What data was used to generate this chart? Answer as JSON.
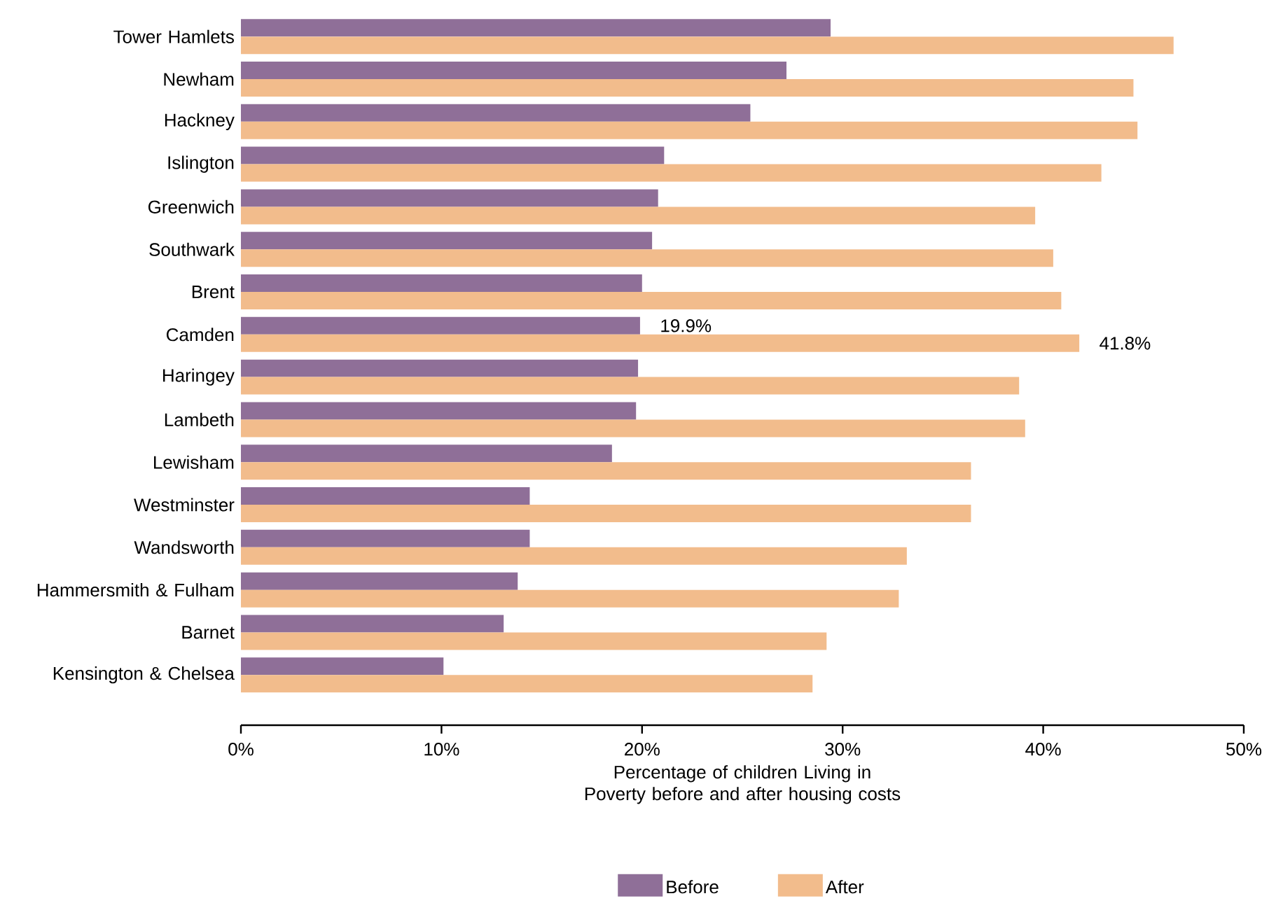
{
  "chart_data": {
    "type": "bar",
    "orientation": "horizontal",
    "xlabel": "Percentage of children Living in Poverty before and after housing costs",
    "categories": [
      "Tower Hamlets",
      "Newham",
      "Hackney",
      "Islington",
      "Greenwich",
      "Southwark",
      "Brent",
      "Camden",
      "Haringey",
      "Lambeth",
      "Lewisham",
      "Westminster",
      "Wandsworth",
      "Hammersmith & Fulham",
      "Barnet",
      "Kensington & Chelsea"
    ],
    "series": [
      {
        "name": "Before",
        "color": "#8f6f98",
        "values": [
          29.4,
          27.2,
          25.4,
          21.1,
          20.8,
          20.5,
          20.0,
          19.9,
          19.8,
          19.7,
          18.5,
          14.4,
          14.4,
          13.8,
          13.1,
          10.1
        ],
        "value_labels": [
          null,
          null,
          null,
          null,
          null,
          null,
          null,
          "19.9%",
          null,
          null,
          null,
          null,
          null,
          null,
          null,
          null
        ]
      },
      {
        "name": "After",
        "color": "#f2bc8c",
        "values": [
          46.5,
          44.5,
          44.7,
          42.9,
          39.6,
          40.5,
          40.9,
          41.8,
          38.8,
          39.1,
          36.4,
          36.4,
          33.2,
          32.8,
          29.2,
          28.5
        ],
        "value_labels": [
          null,
          null,
          null,
          null,
          null,
          null,
          null,
          "41.8%",
          null,
          null,
          null,
          null,
          null,
          null,
          null,
          null
        ]
      }
    ],
    "xlim": [
      0,
      50
    ],
    "xticks": [
      {
        "value": 0,
        "label": "0%"
      },
      {
        "value": 10,
        "label": "10%"
      },
      {
        "value": 20,
        "label": "20%"
      },
      {
        "value": 30,
        "label": "30%"
      },
      {
        "value": 40,
        "label": "40%"
      },
      {
        "value": 50,
        "label": "50%"
      }
    ],
    "grid": false,
    "legend": "bottom"
  }
}
